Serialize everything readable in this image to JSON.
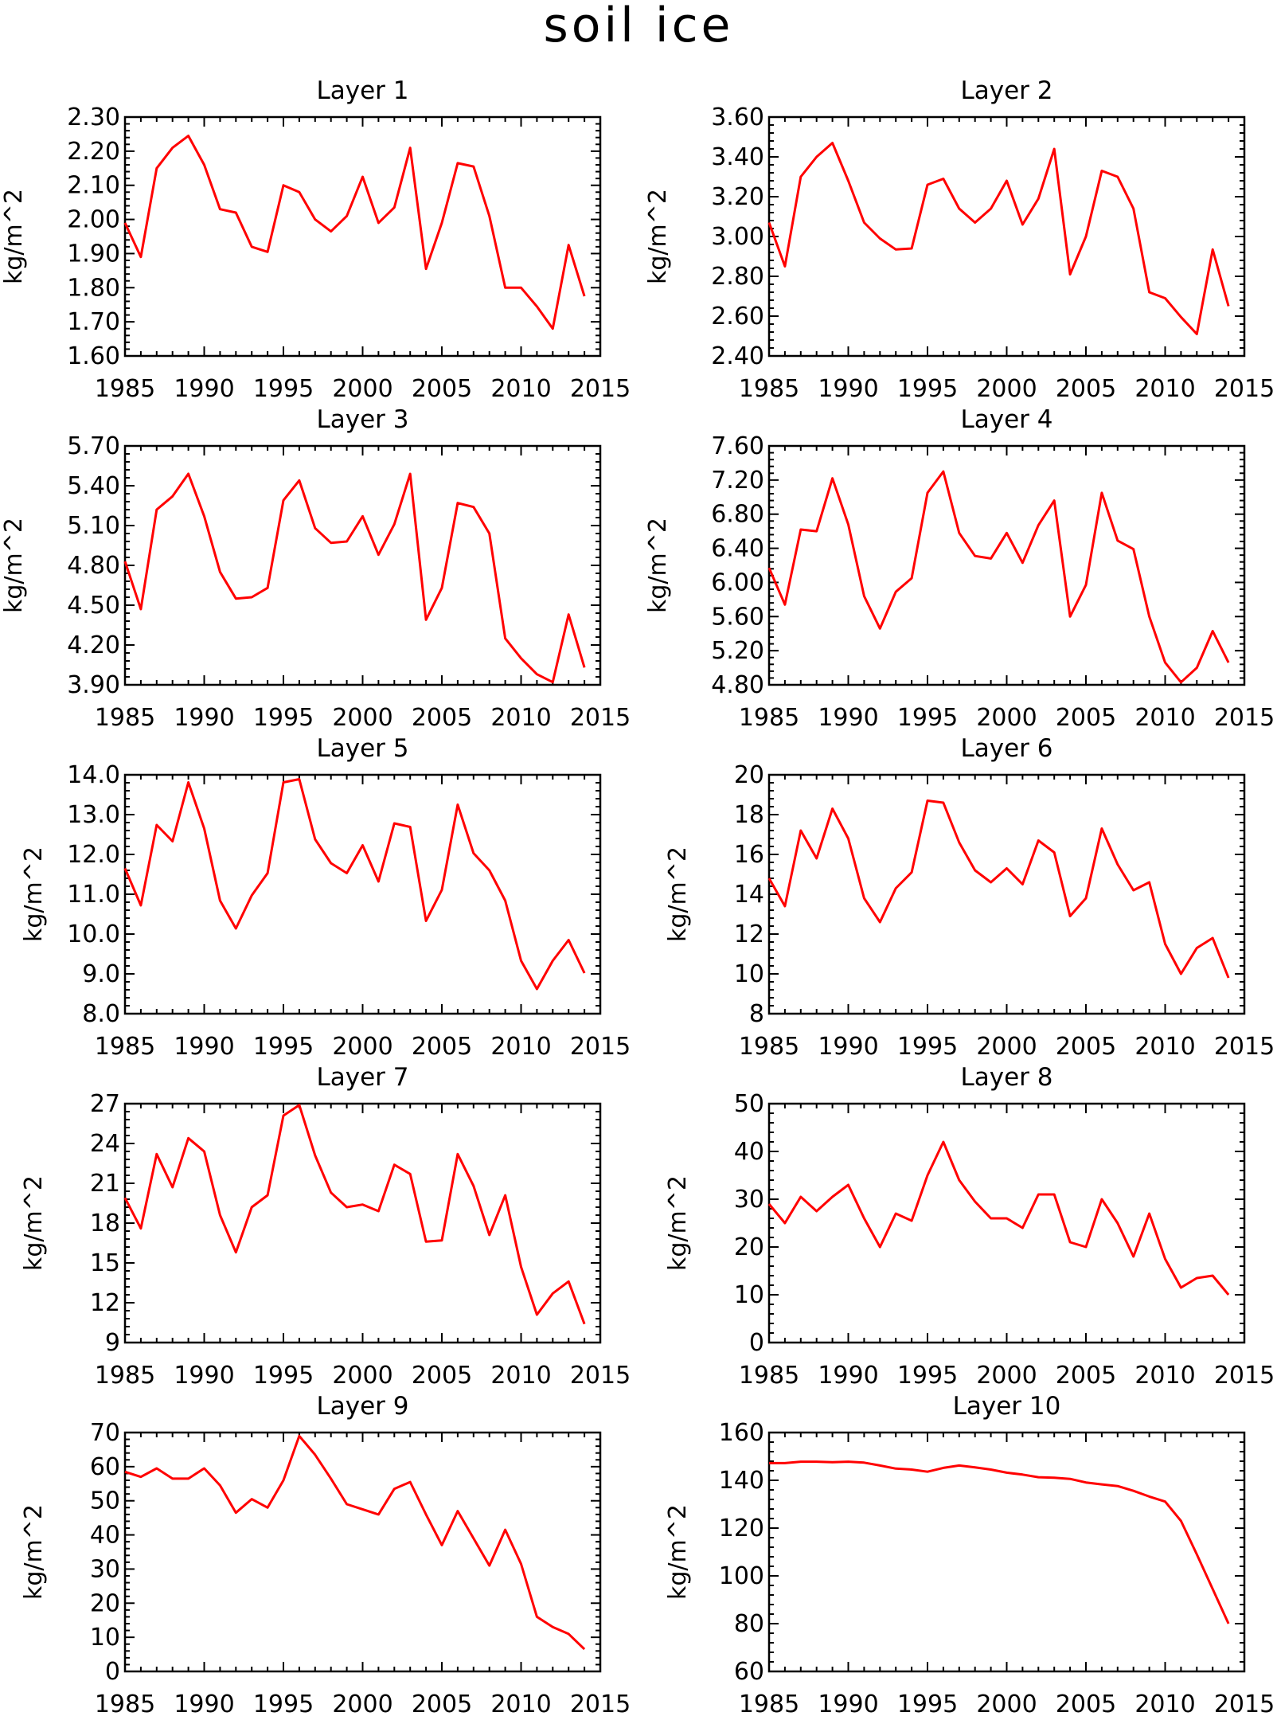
{
  "figure_title": "soil ice",
  "line_color": "#ff0000",
  "chart_data": [
    {
      "type": "line",
      "title": "Layer 1",
      "ylabel": "kg/m^2",
      "xlabel": "",
      "x": [
        1985,
        1986,
        1987,
        1988,
        1989,
        1990,
        1991,
        1992,
        1993,
        1994,
        1995,
        1996,
        1997,
        1998,
        1999,
        2000,
        2001,
        2002,
        2003,
        2004,
        2005,
        2006,
        2007,
        2008,
        2009,
        2010,
        2011,
        2012,
        2013,
        2014
      ],
      "series": [
        {
          "values": [
            1.99,
            1.89,
            2.15,
            2.21,
            2.245,
            2.16,
            2.03,
            2.02,
            1.92,
            1.905,
            2.1,
            2.08,
            2.0,
            1.965,
            2.01,
            2.125,
            1.99,
            2.035,
            2.21,
            1.855,
            1.99,
            2.165,
            2.155,
            2.01,
            1.8,
            1.8,
            1.745,
            1.68,
            1.925,
            1.775
          ]
        }
      ],
      "xlim": [
        1985,
        2015
      ],
      "ylim": [
        1.6,
        2.3
      ],
      "xticks": [
        1985,
        1990,
        1995,
        2000,
        2005,
        2010,
        2015
      ],
      "xtick_labels": [
        "1985",
        "1990",
        "1995",
        "2000",
        "2005",
        "2010",
        "2015"
      ],
      "yticks": [
        1.6,
        1.7,
        1.8,
        1.9,
        2.0,
        2.1,
        2.2,
        2.3
      ],
      "ytick_labels": [
        "1.60",
        "1.70",
        "1.80",
        "1.90",
        "2.00",
        "2.10",
        "2.20",
        "2.30"
      ]
    },
    {
      "type": "line",
      "title": "Layer 2",
      "ylabel": "kg/m^2",
      "xlabel": "",
      "x": [
        1985,
        1986,
        1987,
        1988,
        1989,
        1990,
        1991,
        1992,
        1993,
        1994,
        1995,
        1996,
        1997,
        1998,
        1999,
        2000,
        2001,
        2002,
        2003,
        2004,
        2005,
        2006,
        2007,
        2008,
        2009,
        2010,
        2011,
        2012,
        2013,
        2014
      ],
      "series": [
        {
          "values": [
            3.07,
            2.85,
            3.3,
            3.4,
            3.47,
            3.28,
            3.07,
            2.99,
            2.935,
            2.94,
            3.26,
            3.29,
            3.14,
            3.07,
            3.14,
            3.28,
            3.06,
            3.19,
            3.44,
            2.81,
            3.0,
            3.33,
            3.3,
            3.14,
            2.72,
            2.69,
            2.595,
            2.51,
            2.935,
            2.65
          ]
        }
      ],
      "xlim": [
        1985,
        2015
      ],
      "ylim": [
        2.4,
        3.6
      ],
      "xticks": [
        1985,
        1990,
        1995,
        2000,
        2005,
        2010,
        2015
      ],
      "xtick_labels": [
        "1985",
        "1990",
        "1995",
        "2000",
        "2005",
        "2010",
        "2015"
      ],
      "yticks": [
        2.4,
        2.6,
        2.8,
        3.0,
        3.2,
        3.4,
        3.6
      ],
      "ytick_labels": [
        "2.40",
        "2.60",
        "2.80",
        "3.00",
        "3.20",
        "3.40",
        "3.60"
      ]
    },
    {
      "type": "line",
      "title": "Layer 3",
      "ylabel": "kg/m^2",
      "xlabel": "",
      "x": [
        1985,
        1986,
        1987,
        1988,
        1989,
        1990,
        1991,
        1992,
        1993,
        1994,
        1995,
        1996,
        1997,
        1998,
        1999,
        2000,
        2001,
        2002,
        2003,
        2004,
        2005,
        2006,
        2007,
        2008,
        2009,
        2010,
        2011,
        2012,
        2013,
        2014
      ],
      "series": [
        {
          "values": [
            4.83,
            4.47,
            5.22,
            5.32,
            5.49,
            5.17,
            4.75,
            4.55,
            4.56,
            4.63,
            5.29,
            5.44,
            5.08,
            4.97,
            4.98,
            5.17,
            4.88,
            5.11,
            5.49,
            4.39,
            4.63,
            5.27,
            5.24,
            5.04,
            4.25,
            4.1,
            3.98,
            3.92,
            4.43,
            4.03
          ]
        }
      ],
      "xlim": [
        1985,
        2015
      ],
      "ylim": [
        3.9,
        5.7
      ],
      "xticks": [
        1985,
        1990,
        1995,
        2000,
        2005,
        2010,
        2015
      ],
      "xtick_labels": [
        "1985",
        "1990",
        "1995",
        "2000",
        "2005",
        "2010",
        "2015"
      ],
      "yticks": [
        3.9,
        4.2,
        4.5,
        4.8,
        5.1,
        5.4,
        5.7
      ],
      "ytick_labels": [
        "3.90",
        "4.20",
        "4.50",
        "4.80",
        "5.10",
        "5.40",
        "5.70"
      ]
    },
    {
      "type": "line",
      "title": "Layer 4",
      "ylabel": "kg/m^2",
      "xlabel": "",
      "x": [
        1985,
        1986,
        1987,
        1988,
        1989,
        1990,
        1991,
        1992,
        1993,
        1994,
        1995,
        1996,
        1997,
        1998,
        1999,
        2000,
        2001,
        2002,
        2003,
        2004,
        2005,
        2006,
        2007,
        2008,
        2009,
        2010,
        2011,
        2012,
        2013,
        2014
      ],
      "series": [
        {
          "values": [
            6.17,
            5.74,
            6.62,
            6.6,
            7.22,
            6.68,
            5.84,
            5.46,
            5.89,
            6.05,
            7.05,
            7.3,
            6.58,
            6.31,
            6.28,
            6.58,
            6.23,
            6.67,
            6.96,
            5.6,
            5.97,
            7.05,
            6.49,
            6.39,
            5.6,
            5.06,
            4.83,
            5.0,
            5.43,
            5.06
          ]
        }
      ],
      "xlim": [
        1985,
        2015
      ],
      "ylim": [
        4.8,
        7.6
      ],
      "xticks": [
        1985,
        1990,
        1995,
        2000,
        2005,
        2010,
        2015
      ],
      "xtick_labels": [
        "1985",
        "1990",
        "1995",
        "2000",
        "2005",
        "2010",
        "2015"
      ],
      "yticks": [
        4.8,
        5.2,
        5.6,
        6.0,
        6.4,
        6.8,
        7.2,
        7.6
      ],
      "ytick_labels": [
        "4.80",
        "5.20",
        "5.60",
        "6.00",
        "6.40",
        "6.80",
        "7.20",
        "7.60"
      ]
    },
    {
      "type": "line",
      "title": "Layer 5",
      "ylabel": "kg/m^2",
      "xlabel": "",
      "x": [
        1985,
        1986,
        1987,
        1988,
        1989,
        1990,
        1991,
        1992,
        1993,
        1994,
        1995,
        1996,
        1997,
        1998,
        1999,
        2000,
        2001,
        2002,
        2003,
        2004,
        2005,
        2006,
        2007,
        2008,
        2009,
        2010,
        2011,
        2012,
        2013,
        2014
      ],
      "series": [
        {
          "values": [
            11.65,
            10.72,
            12.74,
            12.33,
            13.81,
            12.65,
            10.84,
            10.14,
            10.97,
            11.53,
            13.81,
            13.89,
            12.38,
            11.78,
            11.53,
            12.23,
            11.32,
            12.78,
            12.69,
            10.33,
            11.11,
            13.25,
            12.03,
            11.6,
            10.84,
            9.33,
            8.62,
            9.33,
            9.85,
            9.02
          ]
        }
      ],
      "xlim": [
        1985,
        2015
      ],
      "ylim": [
        8.0,
        14.0
      ],
      "xticks": [
        1985,
        1990,
        1995,
        2000,
        2005,
        2010,
        2015
      ],
      "xtick_labels": [
        "1985",
        "1990",
        "1995",
        "2000",
        "2005",
        "2010",
        "2015"
      ],
      "yticks": [
        8,
        9,
        10,
        11,
        12,
        13,
        14
      ],
      "ytick_labels": [
        "8.0",
        "9.0",
        "10.0",
        "11.0",
        "12.0",
        "13.0",
        "14.0"
      ]
    },
    {
      "type": "line",
      "title": "Layer 6",
      "ylabel": "kg/m^2",
      "xlabel": "",
      "x": [
        1985,
        1986,
        1987,
        1988,
        1989,
        1990,
        1991,
        1992,
        1993,
        1994,
        1995,
        1996,
        1997,
        1998,
        1999,
        2000,
        2001,
        2002,
        2003,
        2004,
        2005,
        2006,
        2007,
        2008,
        2009,
        2010,
        2011,
        2012,
        2013,
        2014
      ],
      "series": [
        {
          "values": [
            14.8,
            13.4,
            17.2,
            15.8,
            18.3,
            16.8,
            13.8,
            12.6,
            14.3,
            15.1,
            18.7,
            18.6,
            16.6,
            15.2,
            14.6,
            15.3,
            14.5,
            16.7,
            16.1,
            12.9,
            13.8,
            17.3,
            15.5,
            14.2,
            14.6,
            11.5,
            10.0,
            11.3,
            11.8,
            9.8
          ]
        }
      ],
      "xlim": [
        1985,
        2015
      ],
      "ylim": [
        8,
        20
      ],
      "xticks": [
        1985,
        1990,
        1995,
        2000,
        2005,
        2010,
        2015
      ],
      "xtick_labels": [
        "1985",
        "1990",
        "1995",
        "2000",
        "2005",
        "2010",
        "2015"
      ],
      "yticks": [
        8,
        10,
        12,
        14,
        16,
        18,
        20
      ],
      "ytick_labels": [
        "8",
        "10",
        "12",
        "14",
        "16",
        "18",
        "20"
      ]
    },
    {
      "type": "line",
      "title": "Layer 7",
      "ylabel": "kg/m^2",
      "xlabel": "",
      "x": [
        1985,
        1986,
        1987,
        1988,
        1989,
        1990,
        1991,
        1992,
        1993,
        1994,
        1995,
        1996,
        1997,
        1998,
        1999,
        2000,
        2001,
        2002,
        2003,
        2004,
        2005,
        2006,
        2007,
        2008,
        2009,
        2010,
        2011,
        2012,
        2013,
        2014
      ],
      "series": [
        {
          "values": [
            19.9,
            17.6,
            23.2,
            20.7,
            24.4,
            23.4,
            18.6,
            15.8,
            19.2,
            20.1,
            26.1,
            26.9,
            23.1,
            20.3,
            19.2,
            19.4,
            18.9,
            22.4,
            21.7,
            16.6,
            16.7,
            23.2,
            20.8,
            17.1,
            20.1,
            14.7,
            11.1,
            12.7,
            13.6,
            10.4
          ]
        }
      ],
      "xlim": [
        1985,
        2015
      ],
      "ylim": [
        9,
        27
      ],
      "xticks": [
        1985,
        1990,
        1995,
        2000,
        2005,
        2010,
        2015
      ],
      "xtick_labels": [
        "1985",
        "1990",
        "1995",
        "2000",
        "2005",
        "2010",
        "2015"
      ],
      "yticks": [
        9,
        12,
        15,
        18,
        21,
        24,
        27
      ],
      "ytick_labels": [
        "9",
        "12",
        "15",
        "18",
        "21",
        "24",
        "27"
      ]
    },
    {
      "type": "line",
      "title": "Layer 8",
      "ylabel": "kg/m^2",
      "xlabel": "",
      "x": [
        1985,
        1986,
        1987,
        1988,
        1989,
        1990,
        1991,
        1992,
        1993,
        1994,
        1995,
        1996,
        1997,
        1998,
        1999,
        2000,
        2001,
        2002,
        2003,
        2004,
        2005,
        2006,
        2007,
        2008,
        2009,
        2010,
        2011,
        2012,
        2013,
        2014
      ],
      "series": [
        {
          "values": [
            29.0,
            25.0,
            30.5,
            27.5,
            30.5,
            33.0,
            26.0,
            20.0,
            27.0,
            25.5,
            35.0,
            42.0,
            34.0,
            29.5,
            26.0,
            26.0,
            24.0,
            31.0,
            31.0,
            21.0,
            20.0,
            30.0,
            25.0,
            18.0,
            27.0,
            17.5,
            11.5,
            13.5,
            14.0,
            10.0
          ]
        }
      ],
      "xlim": [
        1985,
        2015
      ],
      "ylim": [
        0,
        50
      ],
      "xticks": [
        1985,
        1990,
        1995,
        2000,
        2005,
        2010,
        2015
      ],
      "xtick_labels": [
        "1985",
        "1990",
        "1995",
        "2000",
        "2005",
        "2010",
        "2015"
      ],
      "yticks": [
        0,
        10,
        20,
        30,
        40,
        50
      ],
      "ytick_labels": [
        "0",
        "10",
        "20",
        "30",
        "40",
        "50"
      ]
    },
    {
      "type": "line",
      "title": "Layer 9",
      "ylabel": "kg/m^2",
      "xlabel": "",
      "x": [
        1985,
        1986,
        1987,
        1988,
        1989,
        1990,
        1991,
        1992,
        1993,
        1994,
        1995,
        1996,
        1997,
        1998,
        1999,
        2000,
        2001,
        2002,
        2003,
        2004,
        2005,
        2006,
        2007,
        2008,
        2009,
        2010,
        2011,
        2012,
        2013,
        2014
      ],
      "series": [
        {
          "values": [
            58.5,
            57.0,
            59.5,
            56.5,
            56.5,
            59.5,
            54.5,
            46.5,
            50.5,
            48.0,
            56.0,
            69.0,
            63.5,
            56.5,
            49.0,
            47.5,
            46.0,
            53.5,
            55.5,
            46.0,
            37.0,
            47.0,
            39.0,
            31.0,
            41.5,
            31.5,
            16.0,
            13.0,
            11.0,
            6.5
          ]
        }
      ],
      "xlim": [
        1985,
        2015
      ],
      "ylim": [
        0,
        70
      ],
      "xticks": [
        1985,
        1990,
        1995,
        2000,
        2005,
        2010,
        2015
      ],
      "xtick_labels": [
        "1985",
        "1990",
        "1995",
        "2000",
        "2005",
        "2010",
        "2015"
      ],
      "yticks": [
        0,
        10,
        20,
        30,
        40,
        50,
        60,
        70
      ],
      "ytick_labels": [
        "0",
        "10",
        "20",
        "30",
        "40",
        "50",
        "60",
        "70"
      ]
    },
    {
      "type": "line",
      "title": "Layer 10",
      "ylabel": "kg/m^2",
      "xlabel": "",
      "x": [
        1985,
        1986,
        1987,
        1988,
        1989,
        1990,
        1991,
        1992,
        1993,
        1994,
        1995,
        1996,
        1997,
        1998,
        1999,
        2000,
        2001,
        2002,
        2003,
        2004,
        2005,
        2006,
        2007,
        2008,
        2009,
        2010,
        2011,
        2012,
        2013,
        2014
      ],
      "series": [
        {
          "values": [
            147.2,
            147.2,
            147.8,
            147.8,
            147.6,
            147.8,
            147.4,
            146.2,
            144.9,
            144.5,
            143.6,
            145.2,
            146.2,
            145.4,
            144.5,
            143.2,
            142.4,
            141.3,
            141.1,
            140.6,
            139.1,
            138.3,
            137.6,
            135.6,
            133.2,
            131.1,
            123.0,
            109.0,
            94.5,
            80.0
          ]
        }
      ],
      "xlim": [
        1985,
        2015
      ],
      "ylim": [
        60,
        160
      ],
      "xticks": [
        1985,
        1990,
        1995,
        2000,
        2005,
        2010,
        2015
      ],
      "xtick_labels": [
        "1985",
        "1990",
        "1995",
        "2000",
        "2005",
        "2010",
        "2015"
      ],
      "yticks": [
        60,
        80,
        100,
        120,
        140,
        160
      ],
      "ytick_labels": [
        "60",
        "80",
        "100",
        "120",
        "140",
        "160"
      ]
    }
  ]
}
